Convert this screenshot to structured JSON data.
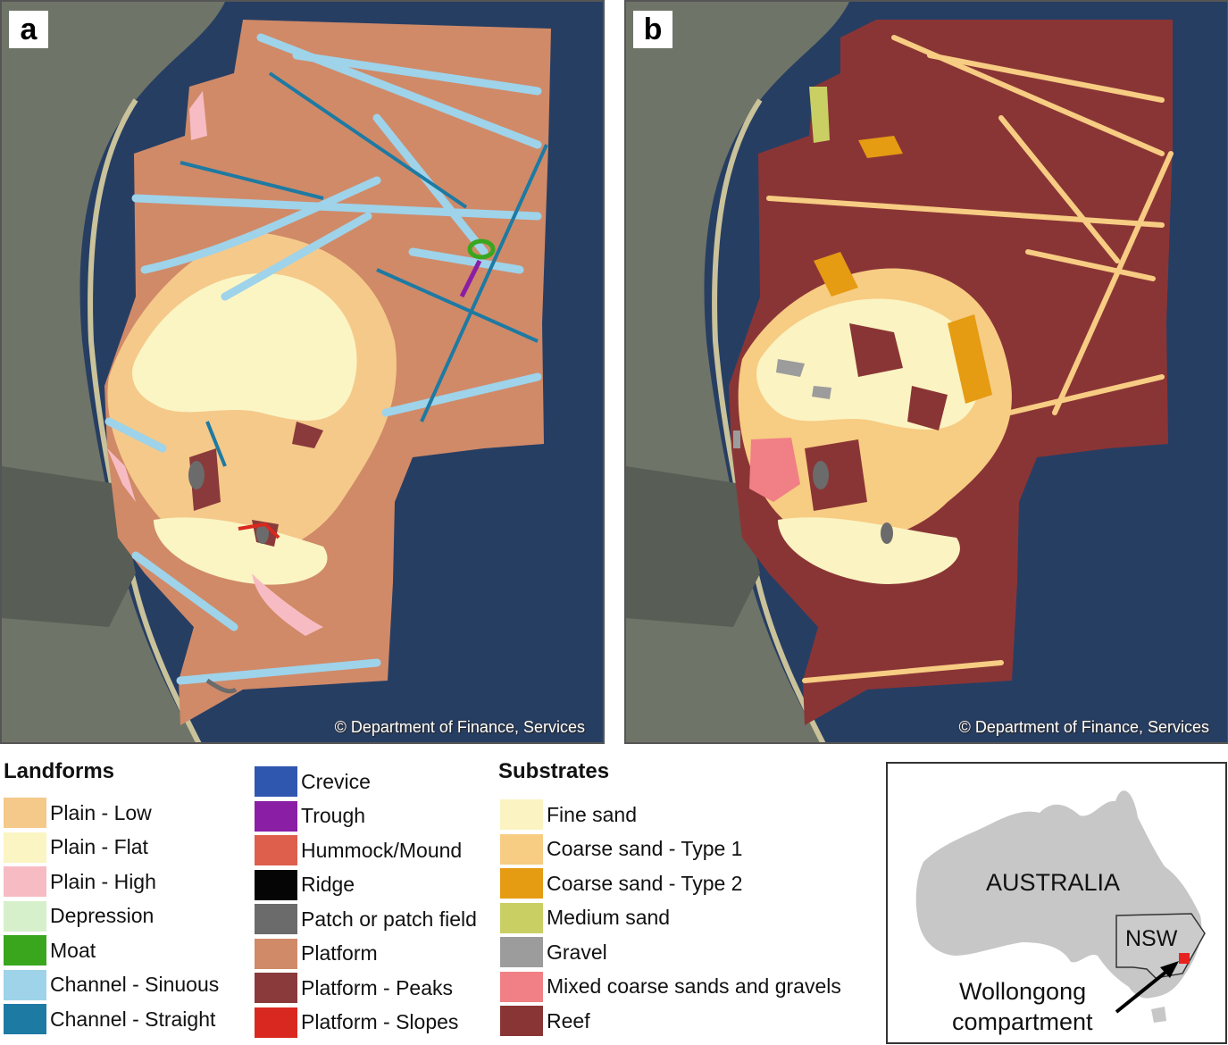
{
  "panels": [
    {
      "label": "a",
      "credit": "© Department of Finance, Services"
    },
    {
      "label": "b",
      "credit": "© Department of Finance, Services"
    }
  ],
  "legend_landforms": {
    "title": "Landforms",
    "items": [
      {
        "label": "Plain - Low",
        "color": "#f5c98a"
      },
      {
        "label": "Plain - Flat",
        "color": "#fbf5c4"
      },
      {
        "label": "Plain - High",
        "color": "#f7bcc3"
      },
      {
        "label": "Depression",
        "color": "#d6f0cc"
      },
      {
        "label": "Moat",
        "color": "#3aa61e"
      },
      {
        "label": "Channel - Sinuous",
        "color": "#9ed3ea"
      },
      {
        "label": "Channel - Straight",
        "color": "#1d7aa3"
      },
      {
        "label": "Crevice",
        "color": "#2f57b0"
      },
      {
        "label": "Trough",
        "color": "#8a1fa5"
      },
      {
        "label": "Hummock/Mound",
        "color": "#de5f4c"
      },
      {
        "label": "Ridge",
        "color": "#050505"
      },
      {
        "label": "Patch or patch field",
        "color": "#6b6b6b"
      },
      {
        "label": "Platform",
        "color": "#d08a68"
      },
      {
        "label": "Platform - Peaks",
        "color": "#8a3a3a"
      },
      {
        "label": "Platform - Slopes",
        "color": "#d9281f"
      }
    ]
  },
  "legend_substrates": {
    "title": "Substrates",
    "items": [
      {
        "label": "Fine sand",
        "color": "#fbf3c2"
      },
      {
        "label": "Coarse sand - Type 1",
        "color": "#f7cc83"
      },
      {
        "label": "Coarse sand - Type 2",
        "color": "#e59b12"
      },
      {
        "label": "Medium sand",
        "color": "#c9cf62"
      },
      {
        "label": "Gravel",
        "color": "#9c9c9c"
      },
      {
        "label": "Mixed coarse sands and gravels",
        "color": "#f08085"
      },
      {
        "label": "Reef",
        "color": "#8a3535"
      }
    ]
  },
  "inset": {
    "country": "AUSTRALIA",
    "state": "NSW",
    "location_line1": "Wollongong",
    "location_line2": "compartment",
    "marker_color": "#e8231f"
  }
}
